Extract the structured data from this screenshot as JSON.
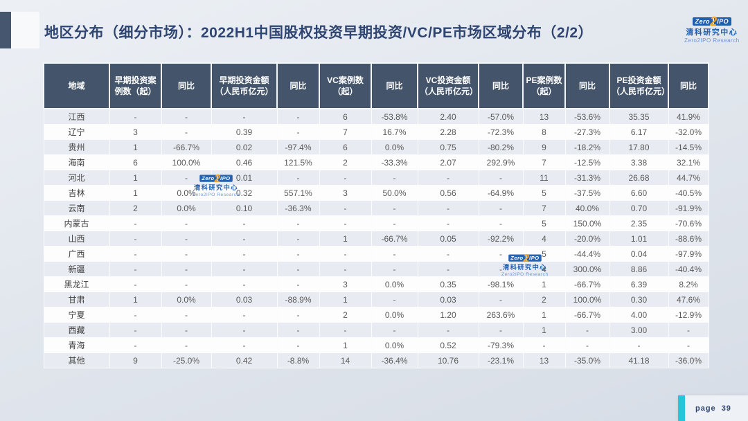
{
  "slide": {
    "title": "地区分布（细分市场）：2022H1中国股权投资早期投资/VC/PE市场区域分布（2/2）",
    "page_label": "page",
    "page_number": "39"
  },
  "logo": {
    "zero": "Zero",
    "two": "2",
    "ipo": "IPO",
    "cn_name": "清科研究中心",
    "en_name": "Zero2IPO Research"
  },
  "table": {
    "headers": [
      "地域",
      "早期投资案例数（起）",
      "同比",
      "早期投资金额（人民币亿元）",
      "同比",
      "VC案例数（起）",
      "同比",
      "VC投资金额（人民币亿元）",
      "同比",
      "PE案例数（起）",
      "同比",
      "PE投资金额（人民币亿元）",
      "同比"
    ],
    "rows": [
      [
        "江西",
        "-",
        "-",
        "-",
        "-",
        "6",
        "-53.8%",
        "2.40",
        "-57.0%",
        "13",
        "-53.6%",
        "35.35",
        "41.9%"
      ],
      [
        "辽宁",
        "3",
        "-",
        "0.39",
        "-",
        "7",
        "16.7%",
        "2.28",
        "-72.3%",
        "8",
        "-27.3%",
        "6.17",
        "-32.0%"
      ],
      [
        "贵州",
        "1",
        "-66.7%",
        "0.02",
        "-97.4%",
        "6",
        "0.0%",
        "0.75",
        "-80.2%",
        "9",
        "-18.2%",
        "17.80",
        "-14.5%"
      ],
      [
        "海南",
        "6",
        "100.0%",
        "0.46",
        "121.5%",
        "2",
        "-33.3%",
        "2.07",
        "292.9%",
        "7",
        "-12.5%",
        "3.38",
        "32.1%"
      ],
      [
        "河北",
        "1",
        "-",
        "0.01",
        "-",
        "-",
        "-",
        "-",
        "-",
        "11",
        "-31.3%",
        "26.68",
        "44.7%"
      ],
      [
        "吉林",
        "1",
        "0.0%",
        "0.32",
        "557.1%",
        "3",
        "50.0%",
        "0.56",
        "-64.9%",
        "5",
        "-37.5%",
        "6.60",
        "-40.5%"
      ],
      [
        "云南",
        "2",
        "0.0%",
        "0.10",
        "-36.3%",
        "-",
        "-",
        "-",
        "-",
        "7",
        "40.0%",
        "0.70",
        "-91.9%"
      ],
      [
        "内蒙古",
        "-",
        "-",
        "-",
        "-",
        "-",
        "-",
        "-",
        "-",
        "5",
        "150.0%",
        "2.35",
        "-70.6%"
      ],
      [
        "山西",
        "-",
        "-",
        "-",
        "-",
        "1",
        "-66.7%",
        "0.05",
        "-92.2%",
        "4",
        "-20.0%",
        "1.01",
        "-88.6%"
      ],
      [
        "广西",
        "-",
        "-",
        "-",
        "-",
        "-",
        "-",
        "-",
        "-",
        "5",
        "-44.4%",
        "0.04",
        "-97.9%"
      ],
      [
        "新疆",
        "-",
        "-",
        "-",
        "-",
        "-",
        "-",
        "-",
        "-",
        "4",
        "300.0%",
        "8.86",
        "-40.4%"
      ],
      [
        "黑龙江",
        "-",
        "-",
        "-",
        "-",
        "3",
        "0.0%",
        "0.35",
        "-98.1%",
        "1",
        "-66.7%",
        "6.39",
        "8.2%"
      ],
      [
        "甘肃",
        "1",
        "0.0%",
        "0.03",
        "-88.9%",
        "1",
        "-",
        "0.03",
        "-",
        "2",
        "100.0%",
        "0.30",
        "47.6%"
      ],
      [
        "宁夏",
        "-",
        "-",
        "-",
        "-",
        "2",
        "0.0%",
        "1.20",
        "263.6%",
        "1",
        "-66.7%",
        "4.00",
        "-12.9%"
      ],
      [
        "西藏",
        "-",
        "-",
        "-",
        "-",
        "-",
        "-",
        "-",
        "-",
        "1",
        "-",
        "3.00",
        "-"
      ],
      [
        "青海",
        "-",
        "-",
        "-",
        "-",
        "1",
        "0.0%",
        "0.52",
        "-79.3%",
        "-",
        "-",
        "-",
        "-"
      ],
      [
        "其他",
        "9",
        "-25.0%",
        "0.42",
        "-8.8%",
        "14",
        "-36.4%",
        "10.76",
        "-23.1%",
        "13",
        "-35.0%",
        "41.18",
        "-36.0%"
      ]
    ]
  },
  "colors": {
    "header_bg": "#44546a",
    "stripe_row": "#e8ebf1",
    "title_text": "#2f4571",
    "accent_teal": "#26c6da",
    "logo_blue": "#1f5fae",
    "logo_orange": "#f6a21d"
  }
}
